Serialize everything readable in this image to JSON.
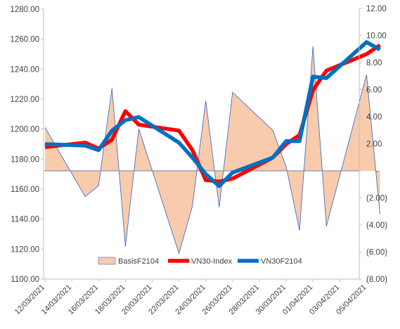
{
  "chart_data": {
    "type": "line",
    "title": "",
    "xlabel": "",
    "ylabel": "",
    "y_left": {
      "min": 1100,
      "max": 1280,
      "step": 20,
      "ticks": [
        "1100.00",
        "1120.00",
        "1140.00",
        "1160.00",
        "1180.00",
        "1200.00",
        "1220.00",
        "1240.00",
        "1260.00",
        "1280.00"
      ]
    },
    "y_right": {
      "min": -8,
      "max": 12,
      "step": 2,
      "ticks": [
        "(8.00)",
        "(6.00)",
        "(4.00)",
        "(2.00)",
        "-",
        "2.00",
        "4.00",
        "6.00",
        "8.00",
        "10.00",
        "12.00"
      ]
    },
    "x_labels": [
      "12/03/2021",
      "14/03/2021",
      "16/03/2021",
      "18/03/2021",
      "20/03/2021",
      "22/03/2021",
      "24/03/2021",
      "26/03/2021",
      "28/03/2021",
      "30/03/2021",
      "01/04/2021",
      "03/04/2021",
      "05/04/2021"
    ],
    "legend_position": "bottom-center",
    "series": [
      {
        "name": "BasisF2104",
        "axis": "right",
        "kind": "area",
        "color": "#f8cbad",
        "line_color": "#4472c4",
        "x": [
          "12/03/2021",
          "15/03/2021",
          "16/03/2021",
          "17/03/2021",
          "18/03/2021",
          "19/03/2021",
          "22/03/2021",
          "23/03/2021",
          "24/03/2021",
          "25/03/2021",
          "26/03/2021",
          "29/03/2021",
          "30/03/2021",
          "31/03/2021",
          "01/04/2021",
          "02/04/2021",
          "05/04/2021",
          "06/04/2021"
        ],
        "values": [
          3.2,
          -1.9,
          -1.1,
          6.1,
          -5.6,
          3.1,
          -6.1,
          -2.6,
          5.2,
          -2.7,
          5.8,
          3.0,
          0.3,
          -4.4,
          9.2,
          -4.1,
          7.1,
          -3.2
        ]
      },
      {
        "name": "VN30-Index",
        "axis": "left",
        "kind": "line",
        "color": "#ff0000",
        "x": [
          "12/03/2021",
          "15/03/2021",
          "16/03/2021",
          "17/03/2021",
          "18/03/2021",
          "19/03/2021",
          "22/03/2021",
          "23/03/2021",
          "24/03/2021",
          "25/03/2021",
          "26/03/2021",
          "29/03/2021",
          "30/03/2021",
          "31/03/2021",
          "01/04/2021",
          "02/04/2021",
          "05/04/2021",
          "06/04/2021"
        ],
        "values": [
          1188,
          1191,
          1187,
          1193,
          1212,
          1203,
          1199,
          1186,
          1166,
          1165,
          1167,
          1181,
          1190,
          1196,
          1226,
          1239,
          1250,
          1256
        ]
      },
      {
        "name": "VN30F2104",
        "axis": "left",
        "kind": "line",
        "color": "#0070c0",
        "x": [
          "12/03/2021",
          "15/03/2021",
          "16/03/2021",
          "17/03/2021",
          "18/03/2021",
          "19/03/2021",
          "22/03/2021",
          "23/03/2021",
          "24/03/2021",
          "25/03/2021",
          "26/03/2021",
          "29/03/2021",
          "30/03/2021",
          "31/03/2021",
          "01/04/2021",
          "02/04/2021",
          "05/04/2021",
          "06/04/2021"
        ],
        "values": [
          1190,
          1189,
          1186,
          1199,
          1206,
          1208,
          1191,
          1181,
          1170,
          1162,
          1171,
          1181,
          1192,
          1192,
          1235,
          1234,
          1258,
          1253
        ]
      }
    ]
  }
}
